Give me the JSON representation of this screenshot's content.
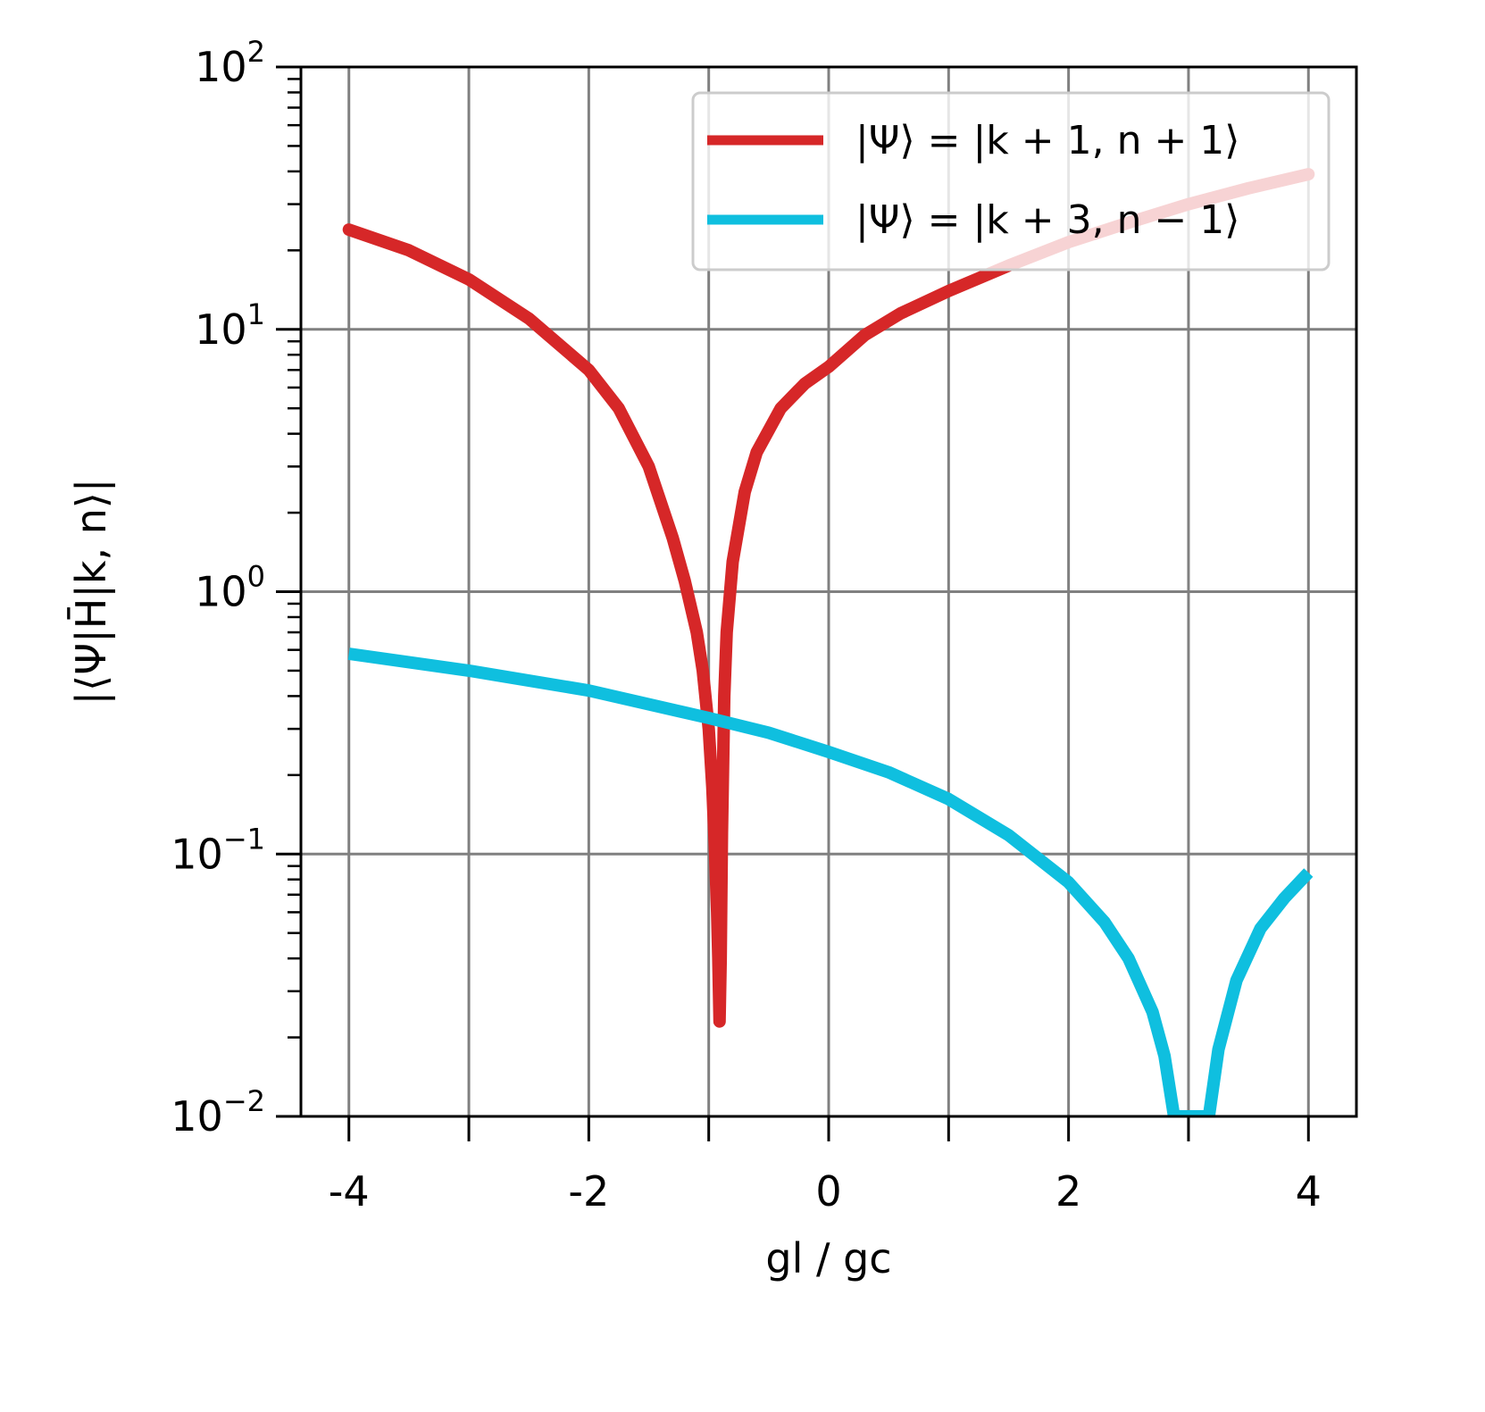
{
  "chart_data": {
    "type": "line",
    "xlabel": "gl / gc",
    "ylabel": "|⟨Ψ|H̄|k, n⟩|",
    "xlim": [
      -4.4,
      4.4
    ],
    "ylim": [
      0.01,
      100
    ],
    "yscale": "log",
    "grid": true,
    "legend_position": "top-right",
    "x_ticks": [
      {
        "value": -4,
        "label": "-4"
      },
      {
        "value": -2,
        "label": "-2"
      },
      {
        "value": 0,
        "label": "0"
      },
      {
        "value": 2,
        "label": "2"
      },
      {
        "value": 4,
        "label": "4"
      }
    ],
    "x_minor_ticks": [
      -3,
      -1,
      1,
      3
    ],
    "y_ticks": [
      {
        "value": 0.01,
        "base": "10",
        "exp": "−2"
      },
      {
        "value": 0.1,
        "base": "10",
        "exp": "−1"
      },
      {
        "value": 1,
        "base": "10",
        "exp": "0"
      },
      {
        "value": 10,
        "base": "10",
        "exp": "1"
      },
      {
        "value": 100,
        "base": "10",
        "exp": "2"
      }
    ],
    "series": [
      {
        "name": "|Ψ⟩ = |k + 1, n + 1⟩",
        "color": "#d62728",
        "x": [
          -4.0,
          -3.5,
          -3.0,
          -2.5,
          -2.0,
          -1.75,
          -1.5,
          -1.3,
          -1.2,
          -1.1,
          -1.05,
          -1.0,
          -0.97,
          -0.95,
          -0.93,
          -0.92,
          -0.91,
          -0.9,
          -0.89,
          -0.87,
          -0.85,
          -0.8,
          -0.7,
          -0.6,
          -0.4,
          -0.2,
          0.0,
          0.3,
          0.6,
          1.0,
          1.5,
          2.0,
          2.5,
          3.0,
          3.5,
          4.0
        ],
        "y": [
          24.0,
          20.0,
          15.5,
          11.0,
          7.0,
          5.0,
          3.0,
          1.6,
          1.1,
          0.7,
          0.5,
          0.3,
          0.18,
          0.11,
          0.06,
          0.04,
          0.023,
          0.04,
          0.12,
          0.4,
          0.7,
          1.3,
          2.4,
          3.4,
          5.0,
          6.2,
          7.2,
          9.5,
          11.5,
          14.0,
          17.5,
          21.5,
          25.5,
          30.0,
          34.5,
          39.0
        ]
      },
      {
        "name": "|Ψ⟩ = |k + 3, n − 1⟩",
        "color": "#0fbfdf",
        "x": [
          -4.0,
          -3.0,
          -2.0,
          -1.0,
          -0.5,
          0.0,
          0.5,
          1.0,
          1.5,
          2.0,
          2.3,
          2.5,
          2.7,
          2.8,
          2.88,
          3.17,
          3.25,
          3.4,
          3.6,
          3.8,
          4.0
        ],
        "y": [
          0.58,
          0.5,
          0.42,
          0.33,
          0.29,
          0.245,
          0.205,
          0.162,
          0.118,
          0.078,
          0.055,
          0.04,
          0.025,
          0.017,
          0.01,
          0.01,
          0.018,
          0.033,
          0.052,
          0.068,
          0.085
        ]
      }
    ]
  }
}
